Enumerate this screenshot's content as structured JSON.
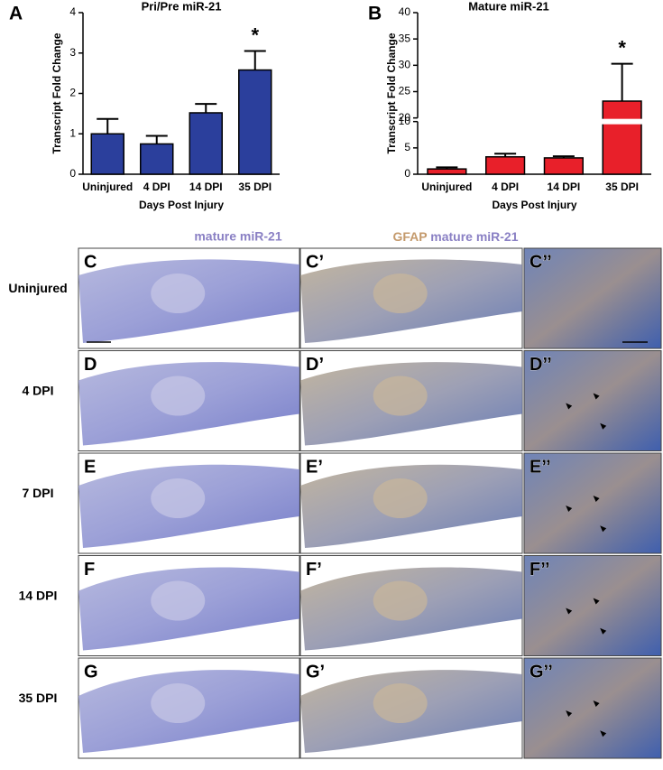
{
  "chart_data": [
    {
      "type": "bar",
      "panel_label": "A",
      "title": "Pri/Pre miR-21",
      "y_label": "Transcript Fold Change",
      "x_label": "Days Post Injury",
      "categories": [
        "Uninjured",
        "4 DPI",
        "14 DPI",
        "35 DPI"
      ],
      "values": [
        1.0,
        0.75,
        1.52,
        2.58
      ],
      "errors": [
        0.37,
        0.2,
        0.22,
        0.47
      ],
      "annotations": [
        null,
        null,
        null,
        "*"
      ],
      "color": "#2b3f9c",
      "ylim": [
        0,
        4
      ],
      "yticks": [
        0,
        1,
        2,
        3,
        4
      ]
    },
    {
      "type": "bar",
      "panel_label": "B",
      "title": "Mature miR-21",
      "y_label": "Transcript Fold Change",
      "x_label": "Days Post Injury",
      "categories": [
        "Uninjured",
        "4 DPI",
        "14 DPI",
        "35 DPI"
      ],
      "values": [
        1.0,
        3.3,
        3.1,
        23.2
      ],
      "errors": [
        0.3,
        0.6,
        0.3,
        7.1
      ],
      "annotations": [
        null,
        null,
        null,
        "*"
      ],
      "color": "#e8202a",
      "ylim": [
        0,
        40
      ],
      "ybreak": [
        10,
        20
      ],
      "yticks": [
        0,
        5,
        10,
        20,
        25,
        30,
        35,
        40
      ]
    }
  ],
  "grid": {
    "column_headers": {
      "first": "mature miR-21",
      "second_stain": "GFAP",
      "second_probe": "mature miR-21"
    },
    "rows": [
      {
        "label": "Uninjured",
        "panels": [
          "C",
          "C’",
          "C’’"
        ]
      },
      {
        "label": "4 DPI",
        "panels": [
          "D",
          "D’",
          "D’’"
        ]
      },
      {
        "label": "7 DPI",
        "panels": [
          "E",
          "E’",
          "E’’"
        ]
      },
      {
        "label": "14 DPI",
        "panels": [
          "F",
          "F’",
          "F’’"
        ]
      },
      {
        "label": "35 DPI",
        "panels": [
          "G",
          "G’",
          "G’’"
        ]
      }
    ]
  }
}
